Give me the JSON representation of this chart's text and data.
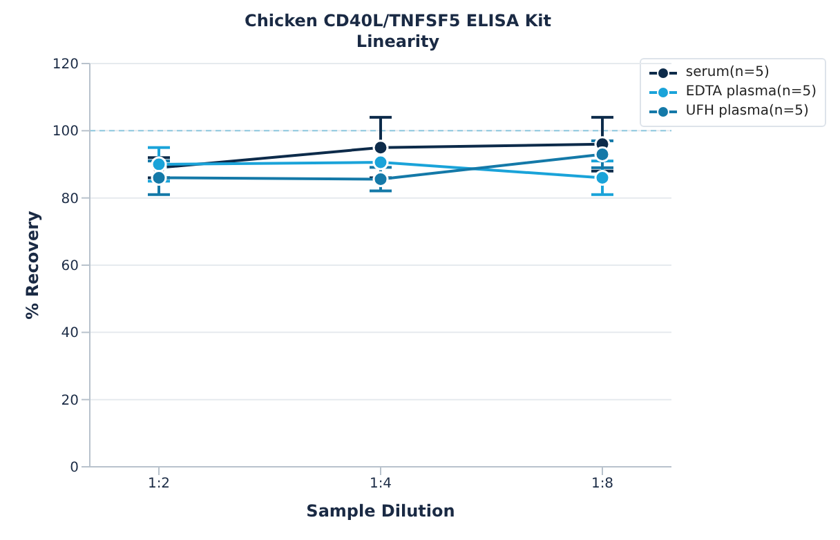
{
  "chart_data": {
    "type": "line",
    "title": "Chicken CD40L/TNFSF5 ELISA Kit",
    "subtitle": "Linearity",
    "xlabel": "Sample Dilution",
    "ylabel": "% Recovery",
    "categories": [
      "1:2",
      "1:4",
      "1:8"
    ],
    "series": [
      {
        "name": "serum(n=5)",
        "color": "#0d2b4a",
        "values": [
          89,
          95,
          96
        ],
        "errors": [
          3,
          9,
          8
        ]
      },
      {
        "name": "EDTA plasma(n=5)",
        "color": "#1aa3d9",
        "values": [
          90,
          90.6,
          86
        ],
        "errors": [
          5,
          null,
          5
        ]
      },
      {
        "name": "UFH plasma(n=5)",
        "color": "#1479a8",
        "values": [
          86,
          85.6,
          93
        ],
        "errors": [
          5,
          3.5,
          4
        ]
      }
    ],
    "ylim": [
      0,
      120
    ],
    "yticks": [
      0,
      20,
      40,
      60,
      80,
      100,
      120
    ],
    "grid": "y",
    "legend": "top right",
    "marker": "circle",
    "line_style": "solid",
    "ref_lines": [
      {
        "axis": "y",
        "value": 100,
        "color": "#8ec9e0",
        "line_style": "dashed"
      }
    ]
  }
}
